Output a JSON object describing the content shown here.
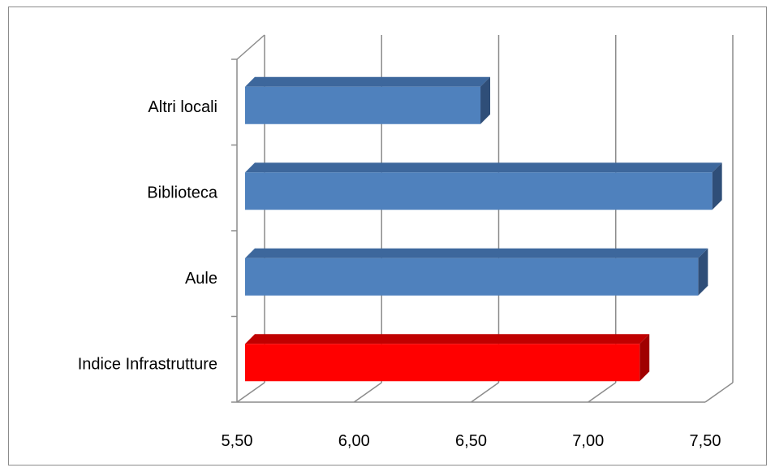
{
  "chart_data": {
    "type": "bar",
    "orientation": "horizontal",
    "style": "3d",
    "categories": [
      "Indice Infrastrutture",
      "Aule",
      "Biblioteca",
      "Altri locali"
    ],
    "values": [
      7.22,
      7.47,
      7.53,
      6.54
    ],
    "xlim": [
      5.5,
      7.5
    ],
    "x_ticks": [
      "5,50",
      "6,00",
      "6,50",
      "7,00",
      "7,50"
    ],
    "grid": true,
    "legend": "none",
    "colors": {
      "Indice Infrastrutture": "#ff0000",
      "Aule": "#4f81bd",
      "Biblioteca": "#4f81bd",
      "Altri locali": "#4f81bd"
    },
    "dark_colors": {
      "Indice Infrastrutture": "#a00000",
      "Aule": "#2f4e78",
      "Biblioteca": "#2f4e78",
      "Altri locali": "#2f4e78"
    },
    "top_colors": {
      "Indice Infrastrutture": "#c00000",
      "Aule": "#3d679c",
      "Biblioteca": "#3d679c",
      "Altri locali": "#3d679c"
    }
  }
}
